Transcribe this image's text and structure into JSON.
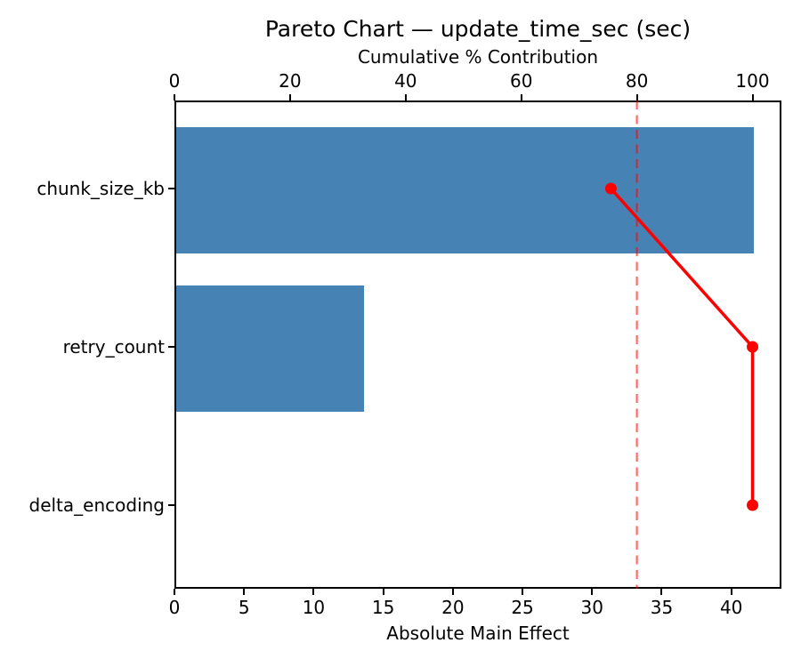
{
  "title": "Pareto Chart — update_time_sec (sec)",
  "chart_data": {
    "type": "bar",
    "orientation": "horizontal",
    "title": "Pareto Chart — update_time_sec (sec)",
    "xlabel_bottom": "Absolute Main Effect",
    "xlabel_top": "Cumulative % Contribution",
    "categories": [
      "chunk_size_kb",
      "retry_count",
      "delta_encoding"
    ],
    "series": [
      {
        "name": "Absolute Main Effect",
        "type": "bar",
        "axis": "bottom",
        "values": [
          41.5,
          13.5,
          0.0
        ]
      },
      {
        "name": "Cumulative % Contribution",
        "type": "line",
        "axis": "top",
        "values": [
          75.5,
          100.0,
          100.0
        ]
      }
    ],
    "threshold_pct": 80,
    "xlim_bottom": [
      0,
      43.6
    ],
    "xlim_top": [
      0,
      105
    ],
    "ticks_bottom": [
      0,
      5,
      10,
      15,
      20,
      25,
      30,
      35,
      40
    ],
    "ticks_top": [
      0,
      20,
      40,
      60,
      80,
      100
    ],
    "grid": false,
    "legend": "none",
    "colors": {
      "bar": "#4682B4",
      "line": "#FF0000",
      "threshold": "rgba(255,0,0,0.58)",
      "spine": "#000000",
      "text": "#000000",
      "background": "#FFFFFF"
    }
  }
}
